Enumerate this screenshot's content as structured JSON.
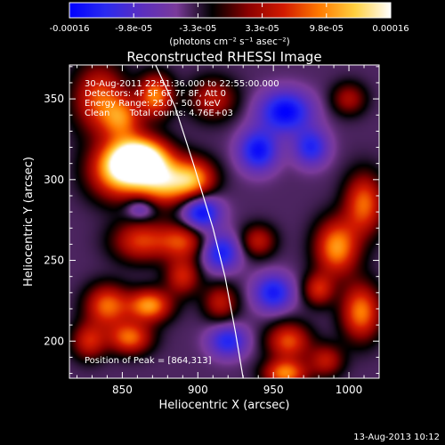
{
  "chart_data": {
    "type": "heatmap",
    "title": "Reconstructed RHESSI Image",
    "xlabel": "Heliocentric X (arcsec)",
    "ylabel": "Heliocentric Y (arcsec)",
    "xlim": [
      815,
      1020
    ],
    "ylim": [
      177,
      371
    ],
    "x_ticks": [
      850,
      900,
      950,
      1000
    ],
    "y_ticks": [
      200,
      250,
      300,
      350
    ],
    "colorbar": {
      "range": [
        -0.00016,
        0.00016
      ],
      "tick_labels": [
        "-0.00016",
        "-9.8e-05",
        "-3.3e-05",
        "3.3e-05",
        "9.8e-05",
        "0.00016"
      ],
      "unit_label": "(photons cm⁻² s⁻¹ asec⁻²)",
      "colormap": [
        "#0000ff",
        "#2a2af0",
        "#5a2ec0",
        "#7a3a9a",
        "#000000",
        "#8a0000",
        "#d21a00",
        "#ff7a00",
        "#ffd040",
        "#ffffff"
      ]
    },
    "annotations": [
      "30-Aug-2011 22:51:36.000 to 22:55:00.000",
      "Detectors: 4F 5F 6F 7F 8F, Att 0",
      "Energy Range: 25.0 - 50.0 keV",
      "Clean       Total counts: 4.76E+03"
    ],
    "peak_label": "Position of Peak = [864,313]",
    "peak": [
      864,
      313
    ],
    "limb_curve": [
      [
        872,
        371
      ],
      [
        885,
        345
      ],
      [
        897,
        310
      ],
      [
        910,
        270
      ],
      [
        918,
        240
      ],
      [
        925,
        205
      ],
      [
        930,
        177
      ]
    ],
    "background_value": -4e-05,
    "sources": [
      {
        "x": 862,
        "y": 313,
        "sx": 13,
        "sy": 9,
        "value": 0.00022
      },
      {
        "x": 848,
        "y": 305,
        "sx": 14,
        "sy": 12,
        "value": 0.00015
      },
      {
        "x": 878,
        "y": 298,
        "sx": 13,
        "sy": 10,
        "value": 0.00014
      },
      {
        "x": 898,
        "y": 300,
        "sx": 10,
        "sy": 9,
        "value": 0.00012
      },
      {
        "x": 872,
        "y": 352,
        "sx": 8,
        "sy": 9,
        "value": 0.00013
      },
      {
        "x": 835,
        "y": 350,
        "sx": 12,
        "sy": 15,
        "value": 0.00011
      },
      {
        "x": 850,
        "y": 338,
        "sx": 9,
        "sy": 9,
        "value": 0.0001
      },
      {
        "x": 910,
        "y": 350,
        "sx": 11,
        "sy": 9,
        "value": 8e-05
      },
      {
        "x": 862,
        "y": 262,
        "sx": 13,
        "sy": 9,
        "value": 0.0001
      },
      {
        "x": 890,
        "y": 262,
        "sx": 11,
        "sy": 8,
        "value": 0.0001
      },
      {
        "x": 840,
        "y": 222,
        "sx": 10,
        "sy": 9,
        "value": 0.00012
      },
      {
        "x": 868,
        "y": 222,
        "sx": 10,
        "sy": 7,
        "value": 0.00014
      },
      {
        "x": 890,
        "y": 240,
        "sx": 8,
        "sy": 8,
        "value": 9e-05
      },
      {
        "x": 855,
        "y": 202,
        "sx": 10,
        "sy": 7,
        "value": 0.00012
      },
      {
        "x": 828,
        "y": 200,
        "sx": 8,
        "sy": 8,
        "value": 9e-05
      },
      {
        "x": 915,
        "y": 224,
        "sx": 8,
        "sy": 8,
        "value": 8e-05
      },
      {
        "x": 1010,
        "y": 285,
        "sx": 9,
        "sy": 13,
        "value": 0.00012
      },
      {
        "x": 992,
        "y": 258,
        "sx": 10,
        "sy": 12,
        "value": 0.00014
      },
      {
        "x": 1008,
        "y": 218,
        "sx": 9,
        "sy": 12,
        "value": 0.00013
      },
      {
        "x": 980,
        "y": 232,
        "sx": 7,
        "sy": 7,
        "value": 9e-05
      },
      {
        "x": 960,
        "y": 200,
        "sx": 10,
        "sy": 8,
        "value": 0.00011
      },
      {
        "x": 958,
        "y": 180,
        "sx": 10,
        "sy": 6,
        "value": 0.00013
      },
      {
        "x": 985,
        "y": 188,
        "sx": 8,
        "sy": 7,
        "value": 8e-05
      },
      {
        "x": 940,
        "y": 262,
        "sx": 8,
        "sy": 7,
        "value": 8e-05
      },
      {
        "x": 1000,
        "y": 350,
        "sx": 8,
        "sy": 7,
        "value": 7e-05
      },
      {
        "x": 958,
        "y": 342,
        "sx": 12,
        "sy": 9,
        "value": -0.00012
      },
      {
        "x": 940,
        "y": 318,
        "sx": 9,
        "sy": 9,
        "value": -0.00011
      },
      {
        "x": 902,
        "y": 280,
        "sx": 9,
        "sy": 8,
        "value": -0.00012
      },
      {
        "x": 975,
        "y": 320,
        "sx": 8,
        "sy": 8,
        "value": -9e-05
      },
      {
        "x": 915,
        "y": 255,
        "sx": 9,
        "sy": 8,
        "value": -0.0001
      },
      {
        "x": 950,
        "y": 230,
        "sx": 9,
        "sy": 8,
        "value": -0.0001
      },
      {
        "x": 920,
        "y": 200,
        "sx": 9,
        "sy": 7,
        "value": -9e-05
      },
      {
        "x": 862,
        "y": 282,
        "sx": 7,
        "sy": 5,
        "value": -7e-05
      }
    ],
    "grid": false,
    "legend": "none"
  },
  "footer": {
    "date": "13-Aug-2013 10:12"
  }
}
